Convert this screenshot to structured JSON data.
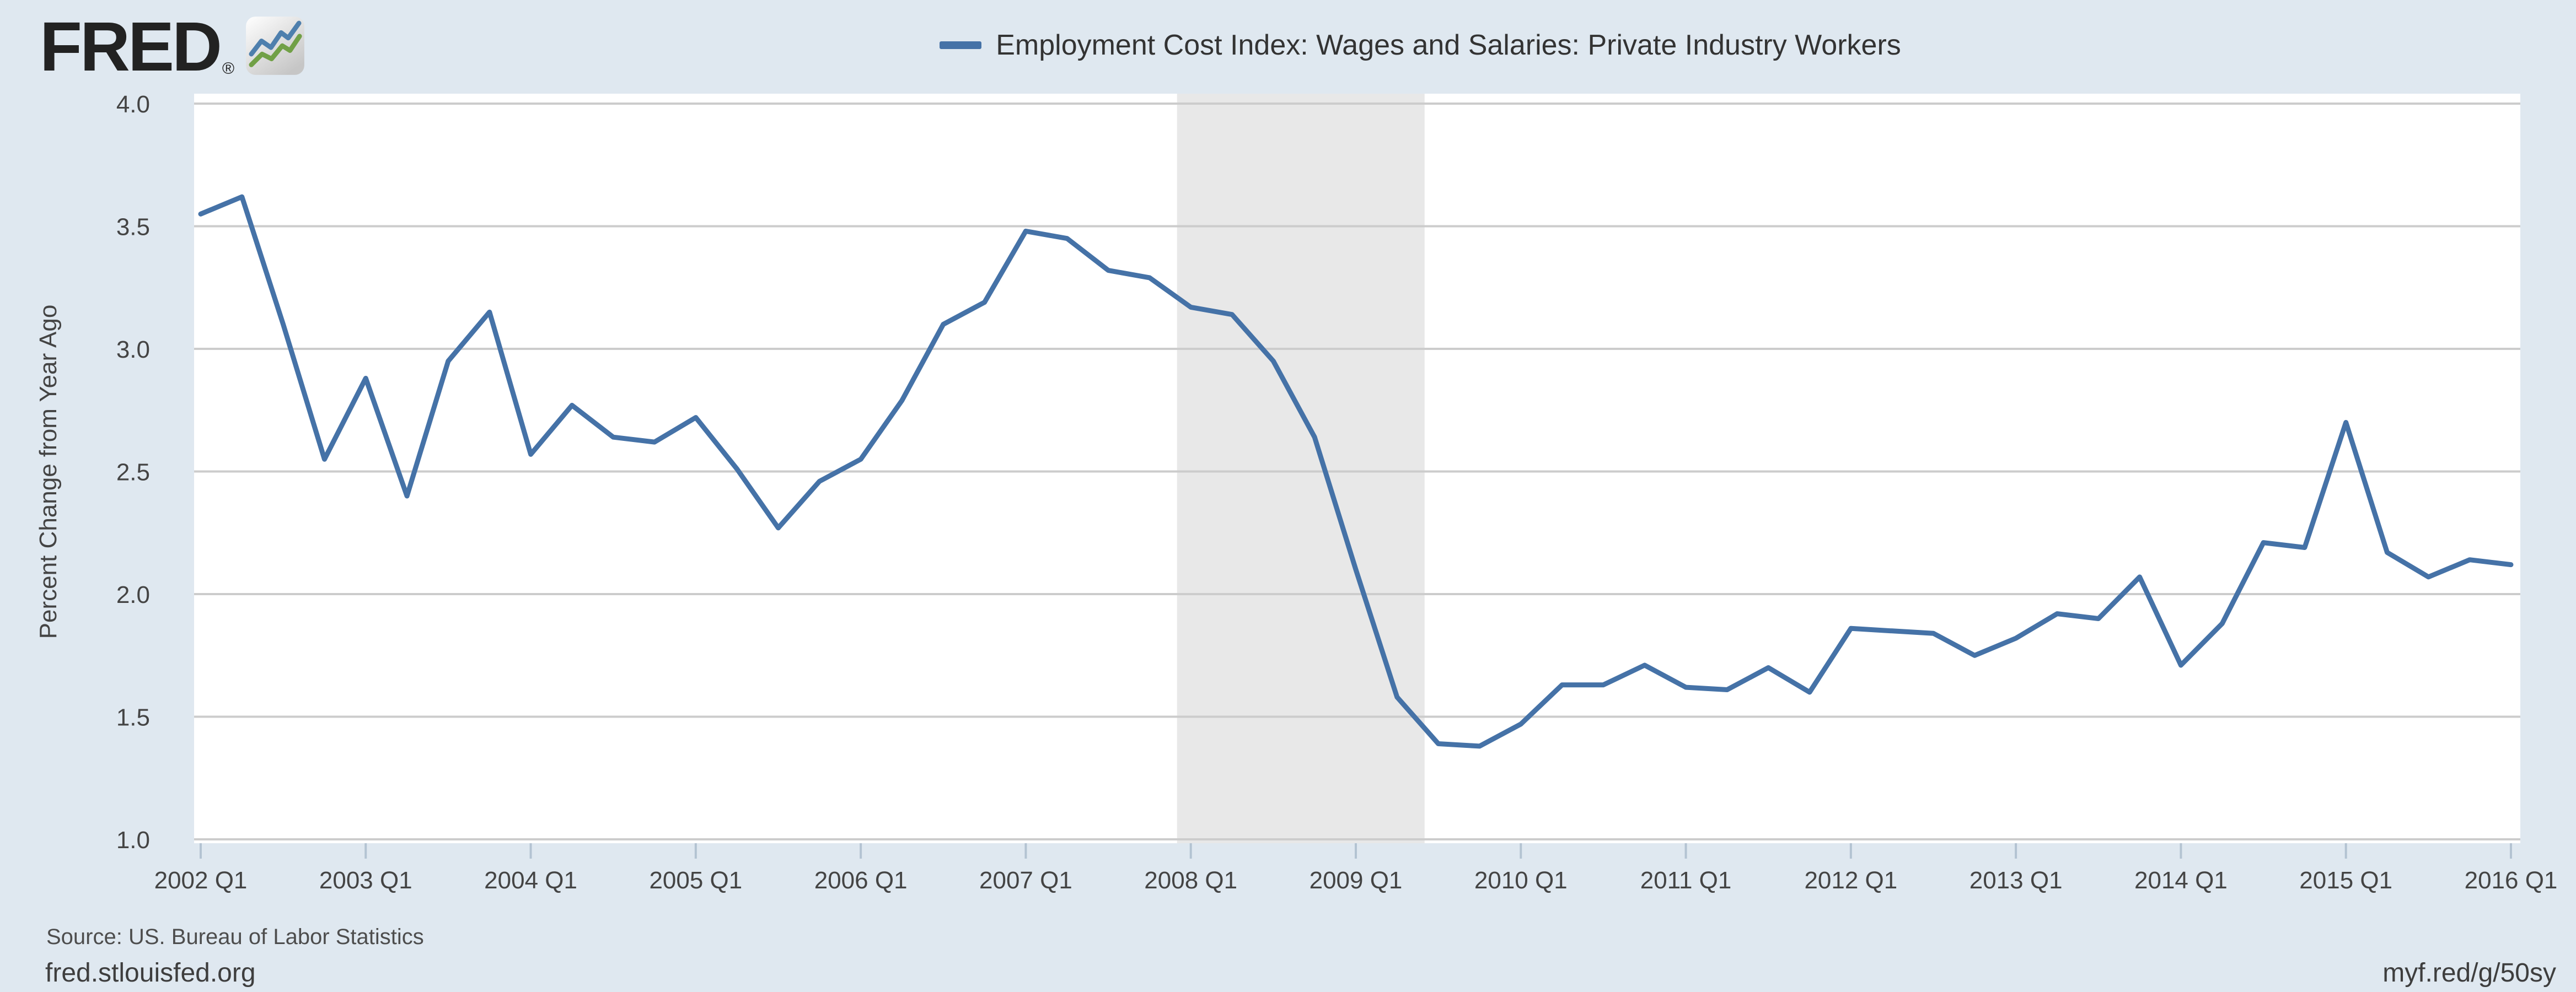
{
  "header": {
    "brand": "FRED",
    "registered": "®"
  },
  "chart_data": {
    "type": "line",
    "title": "",
    "ylabel": "Percent Change from Year Ago",
    "xlabel": "",
    "ylim": [
      1.0,
      4.0
    ],
    "yticks": [
      4.0,
      3.5,
      3.0,
      2.5,
      2.0,
      1.5,
      1.0
    ],
    "grid": "horizontal",
    "legend_position": "top-center",
    "x_domain_years": [
      2002.0,
      2016.0
    ],
    "x_tick_labels": [
      "2002 Q1",
      "2003 Q1",
      "2004 Q1",
      "2005 Q1",
      "2006 Q1",
      "2007 Q1",
      "2008 Q1",
      "2009 Q1",
      "2010 Q1",
      "2011 Q1",
      "2012 Q1",
      "2013 Q1",
      "2014 Q1",
      "2015 Q1",
      "2016 Q1"
    ],
    "frequency": "quarterly",
    "x_start": "2002 Q1",
    "x_end": "2016 Q1",
    "series": [
      {
        "name": "Employment Cost Index: Wages and Salaries: Private Industry Workers",
        "color": "#4572a7",
        "values": [
          3.55,
          3.62,
          3.1,
          2.55,
          2.88,
          2.4,
          2.95,
          3.15,
          2.57,
          2.77,
          2.64,
          2.62,
          2.72,
          2.51,
          2.27,
          2.46,
          2.55,
          2.79,
          3.1,
          3.19,
          3.48,
          3.45,
          3.32,
          3.29,
          3.17,
          3.14,
          2.95,
          2.64,
          2.1,
          1.58,
          1.39,
          1.38,
          1.47,
          1.63,
          1.63,
          1.71,
          1.62,
          1.61,
          1.7,
          1.6,
          1.86,
          1.85,
          1.84,
          1.75,
          1.82,
          1.92,
          1.9,
          2.07,
          1.71,
          1.88,
          2.21,
          2.19,
          2.7,
          2.17,
          2.07,
          2.14,
          2.12
        ]
      }
    ],
    "recession_shading": {
      "start_year_decimal": 2007.9167,
      "end_year_decimal": 2009.4167,
      "color": "#e8e8e8"
    },
    "colors": {
      "page_background": "#dfe8f0",
      "plot_background": "#ffffff",
      "gridline": "#cccccc",
      "tick": "#b3c3d2",
      "axis_text": "#444444",
      "legend_text": "#333333"
    }
  },
  "footer": {
    "source": "Source: US. Bureau of Labor Statistics",
    "site": "fred.stlouisfed.org",
    "shortlink": "myf.red/g/50sy"
  }
}
